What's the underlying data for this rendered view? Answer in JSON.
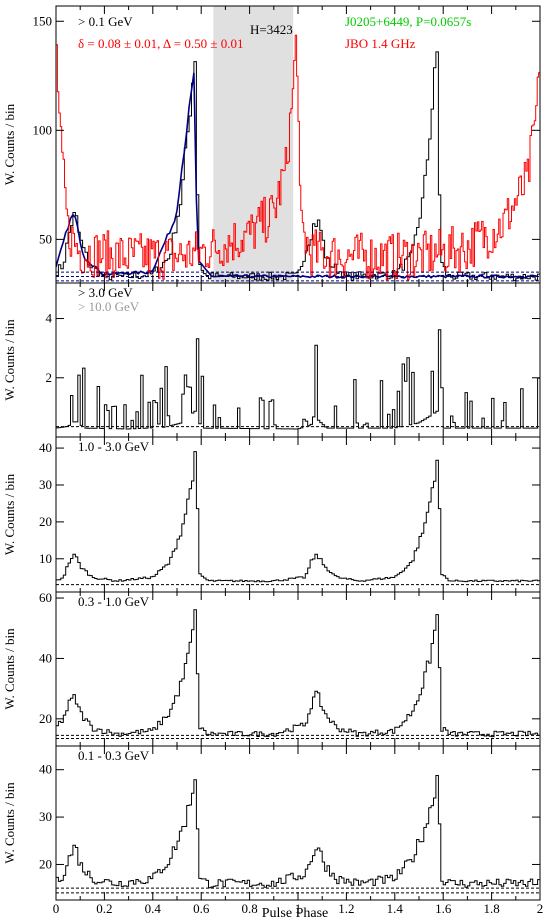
{
  "figure": {
    "xlabel": "Pulse Phase",
    "ylabel": "W. Counts / bin",
    "xlim": [
      0,
      2
    ],
    "xticks": [
      "0",
      "0.2",
      "0.4",
      "0.6",
      "0.8",
      "1",
      "1.2",
      "1.4",
      "1.6",
      "1.8",
      "2"
    ]
  },
  "chart_data": [
    {
      "type": "line",
      "title": "",
      "xlabel": "",
      "ylabel": "W. Counts / bin",
      "ylim": [
        30,
        157
      ],
      "yticks": [
        "50",
        "100",
        "150"
      ],
      "annotations": [
        {
          "text": "> 0.1 GeV",
          "color": "#000000"
        },
        {
          "text": "δ = 0.08 ± 0.01, Δ = 0.50 ± 0.01",
          "color": "#ff0000"
        },
        {
          "text": "H=3423",
          "color": "#000000"
        },
        {
          "text": "J0205+6449, P=0.0657s",
          "color": "#00cc00"
        },
        {
          "text": "JBO 1.4 GHz",
          "color": "#ff0000"
        }
      ],
      "shaded_region": [
        0.65,
        0.98
      ],
      "background_levels": [
        31,
        33,
        35
      ],
      "series": [
        {
          "color": "#000000",
          "style": "histogram",
          "points": [
            [
              0,
              35
            ],
            [
              0.03,
              38
            ],
            [
              0.06,
              56
            ],
            [
              0.08,
              62
            ],
            [
              0.1,
              50
            ],
            [
              0.14,
              38
            ],
            [
              0.2,
              33
            ],
            [
              0.3,
              33
            ],
            [
              0.4,
              34
            ],
            [
              0.47,
              42
            ],
            [
              0.52,
              70
            ],
            [
              0.55,
              105
            ],
            [
              0.575,
              135
            ],
            [
              0.59,
              40
            ],
            [
              0.62,
              33
            ],
            [
              0.8,
              33
            ],
            [
              1.0,
              33
            ],
            [
              1.04,
              48
            ],
            [
              1.07,
              58
            ],
            [
              1.09,
              57
            ],
            [
              1.12,
              40
            ],
            [
              1.2,
              33
            ],
            [
              1.4,
              34
            ],
            [
              1.47,
              42
            ],
            [
              1.52,
              70
            ],
            [
              1.55,
              105
            ],
            [
              1.575,
              135
            ],
            [
              1.59,
              40
            ],
            [
              1.62,
              33
            ],
            [
              2.0,
              33
            ]
          ]
        },
        {
          "color": "#000080",
          "style": "line",
          "points": [
            [
              0,
              35
            ],
            [
              0.06,
              58
            ],
            [
              0.08,
              62
            ],
            [
              0.12,
              42
            ],
            [
              0.2,
              34
            ],
            [
              0.4,
              35
            ],
            [
              0.5,
              60
            ],
            [
              0.55,
              105
            ],
            [
              0.575,
              125
            ],
            [
              0.59,
              40
            ],
            [
              0.65,
              33
            ]
          ]
        },
        {
          "color": "#ff0000",
          "style": "noisy",
          "points": [
            [
              0,
              140
            ],
            [
              0.02,
              90
            ],
            [
              0.05,
              52
            ],
            [
              0.1,
              42
            ],
            [
              0.3,
              40
            ],
            [
              0.5,
              40
            ],
            [
              0.6,
              42
            ],
            [
              0.7,
              46
            ],
            [
              0.8,
              50
            ],
            [
              0.9,
              60
            ],
            [
              0.95,
              80
            ],
            [
              0.98,
              115
            ],
            [
              0.995,
              145
            ],
            [
              1.01,
              55
            ],
            [
              1.05,
              42
            ],
            [
              1.2,
              40
            ],
            [
              1.5,
              40
            ],
            [
              1.7,
              44
            ],
            [
              1.85,
              55
            ],
            [
              1.95,
              75
            ],
            [
              1.99,
              110
            ],
            [
              2.0,
              140
            ]
          ]
        }
      ]
    },
    {
      "type": "line",
      "title": "",
      "xlabel": "",
      "ylabel": "W. Counts / bin",
      "ylim": [
        0,
        5.2
      ],
      "yticks": [
        "2",
        "4"
      ],
      "annotations": [
        {
          "text": "> 3.0 GeV",
          "color": "#000000"
        },
        {
          "text": "> 10.0 GeV",
          "color": "#999999"
        }
      ],
      "background_levels": [
        0.35
      ],
      "series": [
        {
          "color": "#000000",
          "style": "spiky",
          "points": [
            [
              0,
              1.0
            ],
            [
              0.05,
              1.2
            ],
            [
              0.08,
              1.8
            ],
            [
              0.12,
              1.0
            ],
            [
              0.3,
              0.9
            ],
            [
              0.45,
              1.1
            ],
            [
              0.52,
              1.6
            ],
            [
              0.56,
              2.6
            ],
            [
              0.58,
              3.0
            ],
            [
              0.6,
              1.0
            ],
            [
              1.0,
              0.9
            ],
            [
              1.05,
              1.3
            ],
            [
              1.08,
              2.0
            ],
            [
              1.12,
              1.0
            ],
            [
              1.4,
              1.0
            ],
            [
              1.5,
              1.6
            ],
            [
              1.56,
              2.6
            ],
            [
              1.58,
              3.0
            ],
            [
              1.6,
              1.0
            ],
            [
              2.0,
              1.0
            ]
          ]
        }
      ]
    },
    {
      "type": "line",
      "title": "",
      "xlabel": "",
      "ylabel": "W. Counts / bin",
      "ylim": [
        1,
        43
      ],
      "yticks": [
        "10",
        "20",
        "30",
        "40"
      ],
      "annotations": [
        {
          "text": "1.0 - 3.0 GeV",
          "color": "#000000"
        }
      ],
      "background_levels": [
        3
      ],
      "series": [
        {
          "color": "#000000",
          "style": "histogram",
          "points": [
            [
              0,
              4
            ],
            [
              0.03,
              5
            ],
            [
              0.06,
              10
            ],
            [
              0.08,
              11
            ],
            [
              0.1,
              8
            ],
            [
              0.15,
              5
            ],
            [
              0.25,
              4
            ],
            [
              0.4,
              5
            ],
            [
              0.47,
              9
            ],
            [
              0.52,
              18
            ],
            [
              0.55,
              27
            ],
            [
              0.58,
              39
            ],
            [
              0.59,
              6
            ],
            [
              0.63,
              4
            ],
            [
              0.9,
              4
            ],
            [
              1.03,
              5
            ],
            [
              1.06,
              10
            ],
            [
              1.08,
              11
            ],
            [
              1.11,
              8
            ],
            [
              1.16,
              5
            ],
            [
              1.25,
              4
            ],
            [
              1.4,
              5
            ],
            [
              1.47,
              9
            ],
            [
              1.52,
              18
            ],
            [
              1.55,
              27
            ],
            [
              1.58,
              39
            ],
            [
              1.59,
              6
            ],
            [
              1.63,
              4
            ],
            [
              2.0,
              4
            ]
          ]
        }
      ]
    },
    {
      "type": "line",
      "title": "",
      "xlabel": "",
      "ylabel": "W. Counts / bin",
      "ylim": [
        11,
        62
      ],
      "yticks": [
        "20",
        "40",
        "60"
      ],
      "annotations": [
        {
          "text": "0.3 - 1.0 GeV",
          "color": "#000000"
        }
      ],
      "background_levels": [
        13.5,
        14.5
      ],
      "series": [
        {
          "color": "#000000",
          "style": "histogram",
          "points": [
            [
              0,
              17
            ],
            [
              0.03,
              20
            ],
            [
              0.06,
              26
            ],
            [
              0.08,
              27
            ],
            [
              0.1,
              22
            ],
            [
              0.15,
              17
            ],
            [
              0.25,
              15
            ],
            [
              0.4,
              16
            ],
            [
              0.47,
              22
            ],
            [
              0.52,
              32
            ],
            [
              0.55,
              42
            ],
            [
              0.58,
              56
            ],
            [
              0.59,
              17
            ],
            [
              0.63,
              15
            ],
            [
              0.9,
              15
            ],
            [
              1.03,
              18
            ],
            [
              1.06,
              26
            ],
            [
              1.08,
              28
            ],
            [
              1.11,
              22
            ],
            [
              1.16,
              17
            ],
            [
              1.25,
              15
            ],
            [
              1.4,
              16
            ],
            [
              1.47,
              22
            ],
            [
              1.52,
              32
            ],
            [
              1.55,
              42
            ],
            [
              1.58,
              56
            ],
            [
              1.59,
              17
            ],
            [
              1.63,
              15
            ],
            [
              2.0,
              15
            ]
          ]
        }
      ]
    },
    {
      "type": "line",
      "title": "",
      "xlabel": "",
      "ylabel": "W. Counts / bin",
      "ylim": [
        12.5,
        45
      ],
      "yticks": [
        "20",
        "30",
        "40"
      ],
      "annotations": [
        {
          "text": "0.1 - 0.3 GeV",
          "color": "#000000"
        }
      ],
      "background_levels": [
        14,
        15
      ],
      "series": [
        {
          "color": "#000000",
          "style": "histogram",
          "points": [
            [
              0,
              16
            ],
            [
              0.03,
              18
            ],
            [
              0.06,
              22
            ],
            [
              0.08,
              24
            ],
            [
              0.1,
              20
            ],
            [
              0.15,
              17
            ],
            [
              0.25,
              16
            ],
            [
              0.4,
              17
            ],
            [
              0.47,
              21
            ],
            [
              0.52,
              27
            ],
            [
              0.55,
              32
            ],
            [
              0.58,
              40
            ],
            [
              0.59,
              17
            ],
            [
              0.63,
              16
            ],
            [
              0.9,
              16
            ],
            [
              1.03,
              18
            ],
            [
              1.06,
              22
            ],
            [
              1.08,
              24
            ],
            [
              1.11,
              20
            ],
            [
              1.16,
              17
            ],
            [
              1.25,
              16
            ],
            [
              1.4,
              17
            ],
            [
              1.47,
              21
            ],
            [
              1.52,
              27
            ],
            [
              1.55,
              32
            ],
            [
              1.58,
              40
            ],
            [
              1.59,
              17
            ],
            [
              1.63,
              16
            ],
            [
              2.0,
              16
            ]
          ]
        }
      ]
    }
  ]
}
